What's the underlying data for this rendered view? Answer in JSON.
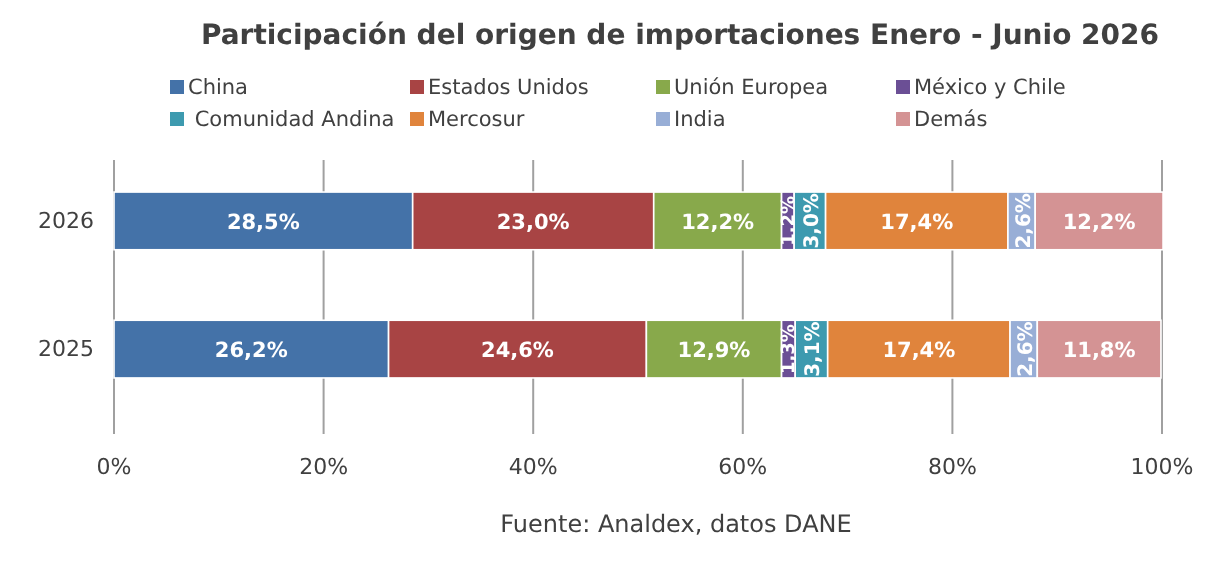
{
  "chart_data": {
    "type": "bar",
    "orientation": "horizontal",
    "stacked": true,
    "title": "Participación del origen de importaciones Enero - Junio 2026",
    "categories": [
      "2026",
      "2025"
    ],
    "series": [
      {
        "name": "China",
        "color": "#4472a8",
        "values": [
          28.5,
          26.2
        ],
        "value_labels": [
          "28,5%",
          "26,2%"
        ]
      },
      {
        "name": "Estados Unidos",
        "color": "#a84444",
        "values": [
          23.0,
          24.6
        ],
        "value_labels": [
          "23,0%",
          "24,6%"
        ]
      },
      {
        "name": "Unión Europea",
        "color": "#88a94b",
        "values": [
          12.2,
          12.9
        ],
        "value_labels": [
          "12,2%",
          "12,9%"
        ]
      },
      {
        "name": "México y Chile",
        "color": "#6b4f95",
        "values": [
          1.2,
          1.3
        ],
        "value_labels": [
          "1,2%",
          "1,3%"
        ]
      },
      {
        "name": " Comunidad Andina",
        "color": "#3d9aaf",
        "values": [
          3.0,
          3.1
        ],
        "value_labels": [
          "3,0%",
          "3,1%"
        ]
      },
      {
        "name": "Mercosur",
        "color": "#e0843c",
        "values": [
          17.4,
          17.4
        ],
        "value_labels": [
          "17,4%",
          "17,4%"
        ]
      },
      {
        "name": "India",
        "color": "#98aed6",
        "values": [
          2.6,
          2.6
        ],
        "value_labels": [
          "2,6%",
          "2,6%"
        ]
      },
      {
        "name": "Demás",
        "color": "#d49394",
        "values": [
          12.2,
          11.8
        ],
        "value_labels": [
          "12,2%",
          "11,8%"
        ]
      }
    ],
    "xlim": [
      0,
      100
    ],
    "xticks": [
      {
        "value": 0,
        "label": "0%"
      },
      {
        "value": 20,
        "label": "20%"
      },
      {
        "value": 40,
        "label": "40%"
      },
      {
        "value": 60,
        "label": "60%"
      },
      {
        "value": 80,
        "label": "80%"
      },
      {
        "value": 100,
        "label": "100%"
      }
    ],
    "grid": "x",
    "legend": "top",
    "annotations": [
      "Fuente: Analdex, datos DANE"
    ]
  }
}
